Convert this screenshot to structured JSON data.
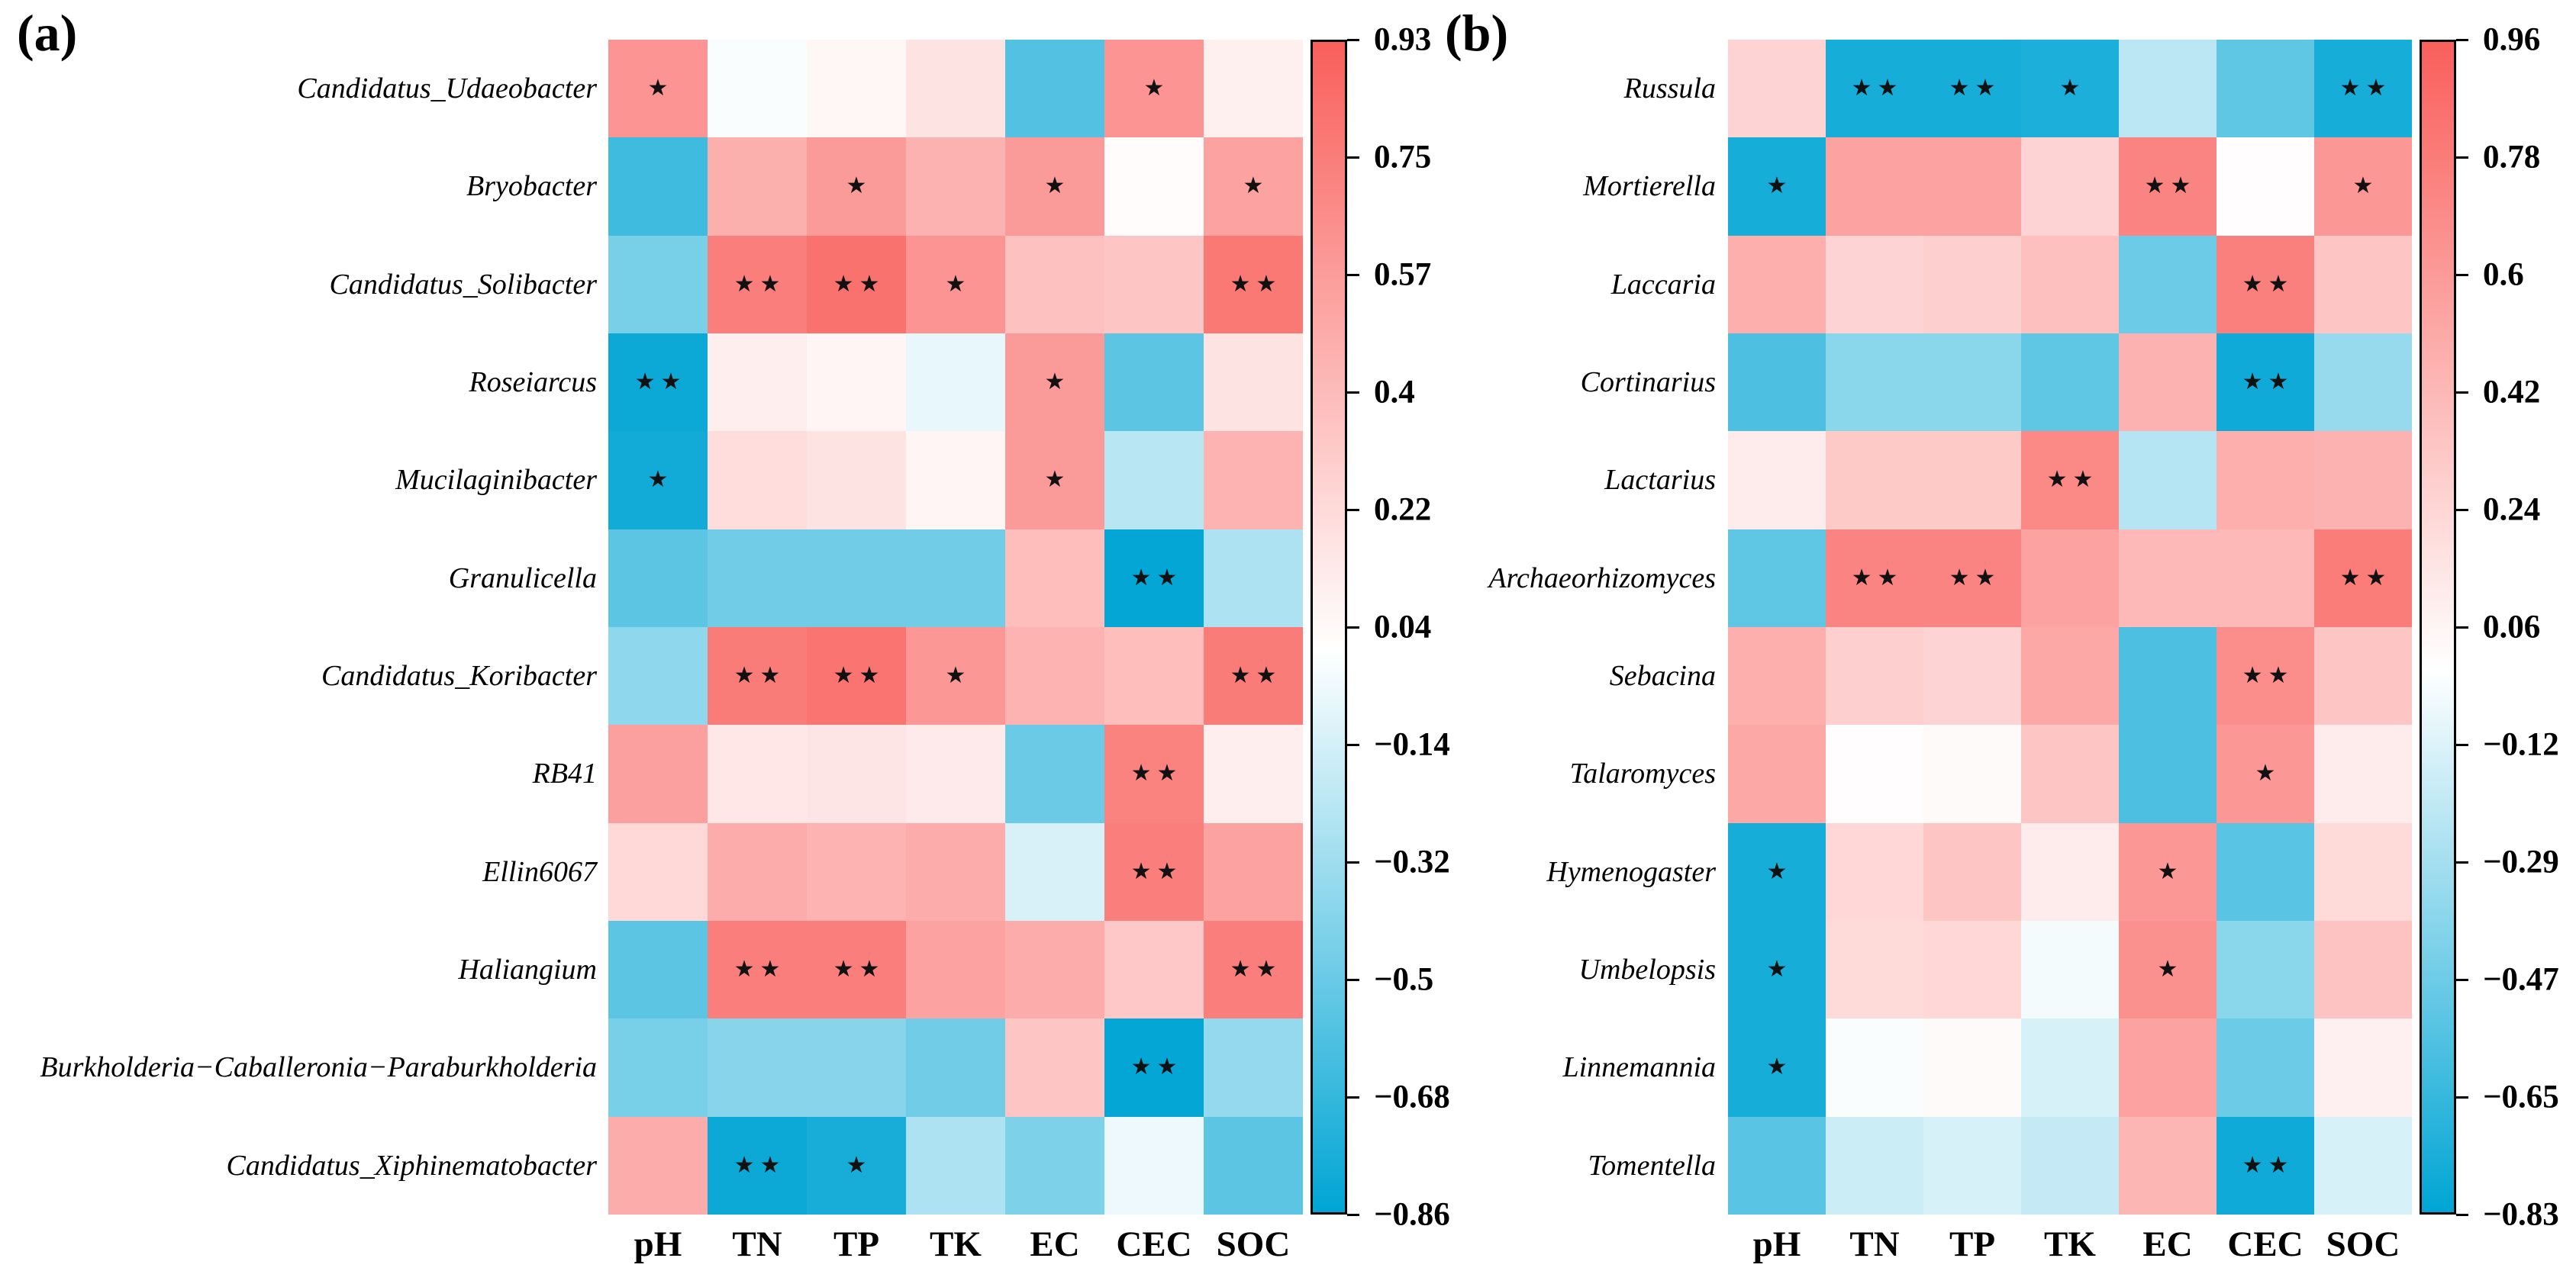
{
  "figure": {
    "colors": {
      "positive_end": "#F95F5B",
      "negative_end": "#00A5D4",
      "midpoint": "#FFFFFF",
      "star_color": "#111111"
    },
    "significance_note_star": "*",
    "significance_note_double_star": "**"
  },
  "chart_data": [
    {
      "type": "heatmap",
      "panel_label": "(a)",
      "x_categories": [
        "pH",
        "TN",
        "TP",
        "TK",
        "EC",
        "CEC",
        "SOC"
      ],
      "y_categories": [
        "Candidatus_Udaeobacter",
        "Bryobacter",
        "Candidatus_Solibacter",
        "Roseiarcus",
        "Mucilaginibacter",
        "Granulicella",
        "Candidatus_Koribacter",
        "RB41",
        "Ellin6067",
        "Haliangium",
        "Burkholderia−Caballeronia−Paraburkholderia",
        "Candidatus_Xiphinematobacter"
      ],
      "values": [
        [
          0.62,
          -0.02,
          0.05,
          0.16,
          -0.58,
          0.62,
          0.09
        ],
        [
          -0.65,
          0.46,
          0.58,
          0.45,
          0.58,
          0.02,
          0.54
        ],
        [
          -0.46,
          0.75,
          0.82,
          0.62,
          0.36,
          0.33,
          0.78
        ],
        [
          -0.82,
          0.1,
          0.06,
          -0.08,
          0.58,
          -0.55,
          0.16
        ],
        [
          -0.8,
          0.2,
          0.16,
          0.06,
          0.58,
          -0.24,
          0.44
        ],
        [
          -0.55,
          -0.48,
          -0.48,
          -0.48,
          0.38,
          -0.85,
          -0.28
        ],
        [
          -0.38,
          0.76,
          0.8,
          0.6,
          0.44,
          0.38,
          0.76
        ],
        [
          0.55,
          0.14,
          0.15,
          0.12,
          -0.5,
          0.72,
          0.1
        ],
        [
          0.22,
          0.48,
          0.44,
          0.48,
          -0.13,
          0.75,
          0.54
        ],
        [
          -0.55,
          0.75,
          0.75,
          0.54,
          0.48,
          0.32,
          0.75
        ],
        [
          -0.46,
          -0.4,
          -0.4,
          -0.48,
          0.34,
          -0.85,
          -0.36
        ],
        [
          0.48,
          -0.82,
          -0.78,
          -0.28,
          -0.44,
          -0.06,
          -0.55
        ]
      ],
      "significance": [
        [
          "*",
          "",
          "",
          "",
          "",
          "*",
          ""
        ],
        [
          "",
          "",
          "*",
          "",
          "*",
          "",
          "*"
        ],
        [
          "",
          "**",
          "**",
          "*",
          "",
          "",
          "**"
        ],
        [
          "**",
          "",
          "",
          "",
          "*",
          "",
          ""
        ],
        [
          "*",
          "",
          "",
          "",
          "*",
          "",
          ""
        ],
        [
          "",
          "",
          "",
          "",
          "",
          "**",
          ""
        ],
        [
          "",
          "**",
          "**",
          "*",
          "",
          "",
          "**"
        ],
        [
          "",
          "",
          "",
          "",
          "",
          "**",
          ""
        ],
        [
          "",
          "",
          "",
          "",
          "",
          "**",
          ""
        ],
        [
          "",
          "**",
          "**",
          "",
          "",
          "",
          "**"
        ],
        [
          "",
          "",
          "",
          "",
          "",
          "**",
          ""
        ],
        [
          "",
          "**",
          "*",
          "",
          "",
          "",
          ""
        ]
      ],
      "vmax": 0.93,
      "vmin": -0.86,
      "colorbar_ticks": [
        "0.93",
        "0.75",
        "0.57",
        "0.4",
        "0.22",
        "0.04",
        "−0.14",
        "−0.32",
        "−0.5",
        "−0.68",
        "−0.86"
      ],
      "legend_position": "right",
      "grid": false
    },
    {
      "type": "heatmap",
      "panel_label": "(b)",
      "x_categories": [
        "pH",
        "TN",
        "TP",
        "TK",
        "EC",
        "CEC",
        "SOC"
      ],
      "y_categories": [
        "Russula",
        "Mortierella",
        "Laccaria",
        "Cortinarius",
        "Lactarius",
        "Archaeorhizomyces",
        "Sebacina",
        "Talaromyces",
        "Hymenogaster",
        "Umbelopsis",
        "Linnemannia",
        "Tomentella"
      ],
      "values": [
        [
          0.26,
          -0.76,
          -0.76,
          -0.74,
          -0.22,
          -0.52,
          -0.76
        ],
        [
          -0.76,
          0.55,
          0.55,
          0.26,
          0.74,
          0.01,
          0.62
        ],
        [
          0.48,
          0.26,
          0.28,
          0.38,
          -0.48,
          0.76,
          0.34
        ],
        [
          -0.58,
          -0.38,
          -0.38,
          -0.52,
          0.46,
          -0.78,
          -0.34
        ],
        [
          0.12,
          0.32,
          0.32,
          0.7,
          -0.24,
          0.48,
          0.46
        ],
        [
          -0.52,
          0.74,
          0.74,
          0.55,
          0.42,
          0.42,
          0.78
        ],
        [
          0.48,
          0.28,
          0.26,
          0.52,
          -0.58,
          0.68,
          0.34
        ],
        [
          0.52,
          0.01,
          0.03,
          0.34,
          -0.58,
          0.62,
          0.12
        ],
        [
          -0.76,
          0.24,
          0.34,
          0.12,
          0.62,
          -0.54,
          0.22
        ],
        [
          -0.76,
          0.22,
          0.24,
          -0.04,
          0.66,
          -0.38,
          0.36
        ],
        [
          -0.76,
          -0.02,
          0.03,
          -0.13,
          0.55,
          -0.48,
          0.09
        ],
        [
          -0.54,
          -0.17,
          -0.13,
          -0.19,
          0.44,
          -0.78,
          -0.13
        ]
      ],
      "significance": [
        [
          "",
          "**",
          "**",
          "*",
          "",
          "",
          "**"
        ],
        [
          "*",
          "",
          "",
          "",
          "**",
          "",
          "*"
        ],
        [
          "",
          "",
          "",
          "",
          "",
          "**",
          ""
        ],
        [
          "",
          "",
          "",
          "",
          "",
          "**",
          ""
        ],
        [
          "",
          "",
          "",
          "**",
          "",
          "",
          ""
        ],
        [
          "",
          "**",
          "**",
          "",
          "",
          "",
          "**"
        ],
        [
          "",
          "",
          "",
          "",
          "",
          "**",
          ""
        ],
        [
          "",
          "",
          "",
          "",
          "",
          "*",
          ""
        ],
        [
          "*",
          "",
          "",
          "",
          "*",
          "",
          ""
        ],
        [
          "*",
          "",
          "",
          "",
          "*",
          "",
          ""
        ],
        [
          "*",
          "",
          "",
          "",
          "",
          "",
          ""
        ],
        [
          "",
          "",
          "",
          "",
          "",
          "**",
          ""
        ]
      ],
      "vmax": 0.96,
      "vmin": -0.83,
      "colorbar_ticks": [
        "0.96",
        "0.78",
        "0.6",
        "0.42",
        "0.24",
        "0.06",
        "−0.12",
        "−0.29",
        "−0.47",
        "−0.65",
        "−0.83"
      ],
      "legend_position": "right",
      "grid": false
    }
  ]
}
